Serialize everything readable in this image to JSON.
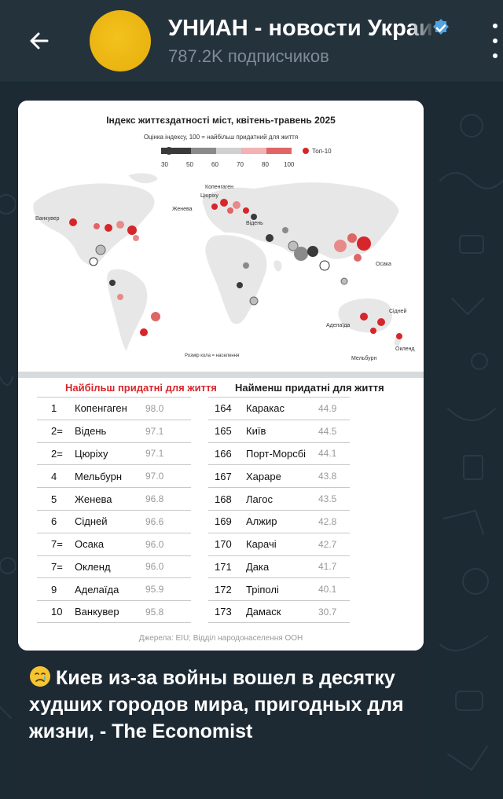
{
  "header": {
    "title": "УНИАН - новости Украины",
    "subscribers": "787.2K подписчиков",
    "back_icon": "arrow-left-icon",
    "verified_icon": "verified-badge-icon",
    "menu_icon": "more-vertical-icon"
  },
  "infographic": {
    "map": {
      "title": "Індекс життєздатності міст, квітень-травень 2025",
      "legend_caption": "Оцінка індексу, 100 = найбільш придатний для життя",
      "legend_ticks": [
        "30",
        "50",
        "60",
        "70",
        "80",
        "100"
      ],
      "top10_label": "Топ-10",
      "size_note": "Розмір кола = населення",
      "city_labels": [
        "Копенгаген",
        "Цюріху",
        "Женева",
        "Відень",
        "Ванкувер",
        "Осака",
        "Сідней",
        "Аделаїда",
        "Окленд",
        "Мельбурн"
      ],
      "colors": {
        "top10": "#d6262b",
        "high": "#e88a8a",
        "mid": "#bdbdbd",
        "low": "#3a3a3a",
        "land": "#e9e9e9"
      }
    },
    "tables": {
      "most_title": "Найбільш придатні для життя",
      "least_title": "Найменш придатні для життя",
      "most": [
        {
          "rank": "1",
          "city": "Копенгаген",
          "score": "98.0"
        },
        {
          "rank": "2=",
          "city": "Відень",
          "score": "97.1"
        },
        {
          "rank": "2=",
          "city": "Цюріху",
          "score": "97.1"
        },
        {
          "rank": "4",
          "city": "Мельбурн",
          "score": "97.0"
        },
        {
          "rank": "5",
          "city": "Женева",
          "score": "96.8"
        },
        {
          "rank": "6",
          "city": "Сідней",
          "score": "96.6"
        },
        {
          "rank": "7=",
          "city": "Осака",
          "score": "96.0"
        },
        {
          "rank": "7=",
          "city": "Окленд",
          "score": "96.0"
        },
        {
          "rank": "9",
          "city": "Аделаїда",
          "score": "95.9"
        },
        {
          "rank": "10",
          "city": "Ванкувер",
          "score": "95.8"
        }
      ],
      "least": [
        {
          "rank": "164",
          "city": "Каракас",
          "score": "44.9"
        },
        {
          "rank": "165",
          "city": "Київ",
          "score": "44.5"
        },
        {
          "rank": "166",
          "city": "Порт-Морсбі",
          "score": "44.1"
        },
        {
          "rank": "167",
          "city": "Хараре",
          "score": "43.8"
        },
        {
          "rank": "168",
          "city": "Лагос",
          "score": "43.5"
        },
        {
          "rank": "169",
          "city": "Алжир",
          "score": "42.8"
        },
        {
          "rank": "170",
          "city": "Карачі",
          "score": "42.7"
        },
        {
          "rank": "171",
          "city": "Дака",
          "score": "41.7"
        },
        {
          "rank": "172",
          "city": "Тріполі",
          "score": "40.1"
        },
        {
          "rank": "173",
          "city": "Дамаск",
          "score": "30.7"
        }
      ],
      "sources": "Джерела: EIU; Відділ народонаселення ООН"
    }
  },
  "message": {
    "emoji": "crying-face-icon",
    "text": "Киев из-за войны вошел в десятку худших городов мира, пригодных для жизни, - The Economist"
  },
  "theme": {
    "header_bg": "#24323c",
    "chat_bg": "#1b2a33",
    "bubble_bg": "#1d2a34",
    "accent": "#4fa3e0"
  }
}
